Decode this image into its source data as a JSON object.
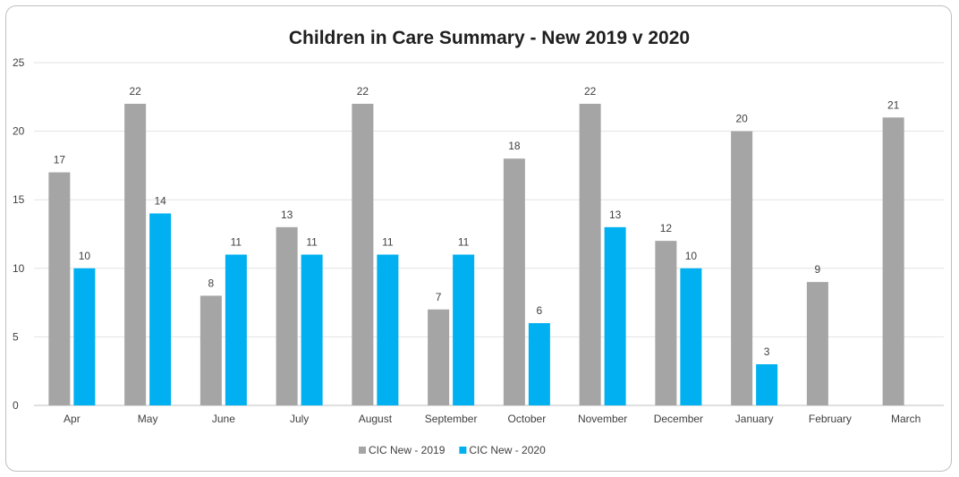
{
  "chart_data": {
    "type": "bar",
    "title": "Children in Care Summary - New 2019 v 2020",
    "xlabel": "",
    "ylabel": "",
    "ylim": [
      0,
      25
    ],
    "yticks": [
      0,
      5,
      10,
      15,
      20,
      25
    ],
    "grid": true,
    "legend_position": "bottom",
    "categories": [
      "Apr",
      "May",
      "June",
      "July",
      "August",
      "September",
      "October",
      "November",
      "December",
      "January",
      "February",
      "March"
    ],
    "series": [
      {
        "name": "CIC New - 2019",
        "color": "#a5a5a5",
        "values": [
          17,
          22,
          8,
          13,
          22,
          7,
          18,
          22,
          12,
          20,
          9,
          21
        ]
      },
      {
        "name": "CIC New - 2020",
        "color": "#00b0f0",
        "values": [
          10,
          14,
          11,
          11,
          11,
          11,
          6,
          13,
          10,
          3,
          null,
          null
        ]
      }
    ]
  }
}
